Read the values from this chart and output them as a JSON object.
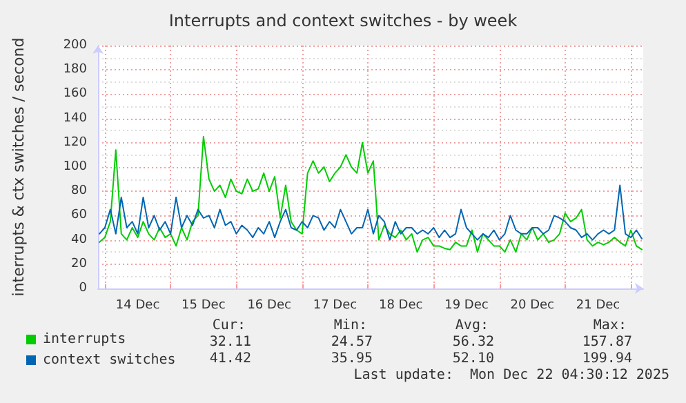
{
  "chart_data": {
    "type": "line",
    "title": "Interrupts and context switches - by week",
    "ylabel": "interrupts & ctx switches / second",
    "x": [
      "2025-12-13T22:00",
      "2025-12-14T00:00",
      "2025-12-14T02:00",
      "2025-12-14T04:00",
      "2025-12-14T06:00",
      "2025-12-14T08:00",
      "2025-12-14T10:00",
      "2025-12-14T12:00",
      "2025-12-14T14:00",
      "2025-12-14T16:00",
      "2025-12-14T18:00",
      "2025-12-14T20:00",
      "2025-12-14T22:00",
      "2025-12-15T00:00",
      "2025-12-15T02:00",
      "2025-12-15T04:00",
      "2025-12-15T06:00",
      "2025-12-15T08:00",
      "2025-12-15T10:00",
      "2025-12-15T12:00",
      "2025-12-15T14:00",
      "2025-12-15T16:00",
      "2025-12-15T18:00",
      "2025-12-15T20:00",
      "2025-12-15T22:00",
      "2025-12-16T00:00",
      "2025-12-16T02:00",
      "2025-12-16T04:00",
      "2025-12-16T06:00",
      "2025-12-16T08:00",
      "2025-12-16T10:00",
      "2025-12-16T12:00",
      "2025-12-16T14:00",
      "2025-12-16T16:00",
      "2025-12-16T18:00",
      "2025-12-16T20:00",
      "2025-12-16T22:00",
      "2025-12-17T00:00",
      "2025-12-17T02:00",
      "2025-12-17T04:00",
      "2025-12-17T06:00",
      "2025-12-17T08:00",
      "2025-12-17T10:00",
      "2025-12-17T12:00",
      "2025-12-17T14:00",
      "2025-12-17T16:00",
      "2025-12-17T18:00",
      "2025-12-17T20:00",
      "2025-12-17T22:00",
      "2025-12-18T00:00",
      "2025-12-18T02:00",
      "2025-12-18T04:00",
      "2025-12-18T06:00",
      "2025-12-18T08:00",
      "2025-12-18T10:00",
      "2025-12-18T12:00",
      "2025-12-18T14:00",
      "2025-12-18T16:00",
      "2025-12-18T18:00",
      "2025-12-18T20:00",
      "2025-12-18T22:00",
      "2025-12-19T00:00",
      "2025-12-19T02:00",
      "2025-12-19T04:00",
      "2025-12-19T06:00",
      "2025-12-19T08:00",
      "2025-12-19T10:00",
      "2025-12-19T12:00",
      "2025-12-19T14:00",
      "2025-12-19T16:00",
      "2025-12-19T18:00",
      "2025-12-19T20:00",
      "2025-12-19T22:00",
      "2025-12-20T00:00",
      "2025-12-20T02:00",
      "2025-12-20T04:00",
      "2025-12-20T06:00",
      "2025-12-20T08:00",
      "2025-12-20T10:00",
      "2025-12-20T12:00",
      "2025-12-20T14:00",
      "2025-12-20T16:00",
      "2025-12-20T18:00",
      "2025-12-20T20:00",
      "2025-12-20T22:00",
      "2025-12-21T00:00",
      "2025-12-21T02:00",
      "2025-12-21T04:00",
      "2025-12-21T06:00",
      "2025-12-21T08:00",
      "2025-12-21T10:00",
      "2025-12-21T12:00",
      "2025-12-21T14:00",
      "2025-12-21T16:00",
      "2025-12-21T18:00",
      "2025-12-21T20:00",
      "2025-12-21T22:00",
      "2025-12-22T00:00",
      "2025-12-22T02:00",
      "2025-12-22T04:00"
    ],
    "series": [
      {
        "name": "interrupts",
        "color": "#00cc00",
        "values": [
          38,
          42,
          55,
          114,
          45,
          40,
          50,
          42,
          55,
          45,
          40,
          50,
          42,
          45,
          35,
          50,
          40,
          55,
          60,
          125,
          90,
          80,
          85,
          75,
          90,
          80,
          78,
          90,
          80,
          82,
          95,
          80,
          92,
          58,
          85,
          55,
          48,
          45,
          95,
          105,
          95,
          100,
          88,
          95,
          100,
          110,
          100,
          95,
          120,
          95,
          105,
          40,
          52,
          45,
          42,
          48,
          40,
          45,
          30,
          40,
          42,
          35,
          35,
          33,
          32,
          38,
          35,
          35,
          48,
          30,
          45,
          40,
          35,
          35,
          30,
          40,
          30,
          45,
          40,
          50,
          40,
          45,
          38,
          40,
          45,
          62,
          55,
          58,
          65,
          40,
          35,
          38,
          36,
          38,
          42,
          38,
          35,
          48,
          35,
          32
        ]
      },
      {
        "name": "context switches",
        "color": "#0066b3",
        "values": [
          45,
          50,
          65,
          45,
          75,
          50,
          55,
          45,
          75,
          50,
          60,
          48,
          55,
          45,
          75,
          50,
          60,
          52,
          65,
          58,
          60,
          50,
          65,
          52,
          55,
          45,
          52,
          48,
          42,
          50,
          45,
          55,
          42,
          55,
          65,
          50,
          48,
          55,
          50,
          60,
          58,
          48,
          55,
          50,
          65,
          55,
          45,
          50,
          50,
          65,
          45,
          60,
          55,
          40,
          55,
          45,
          50,
          50,
          45,
          48,
          45,
          50,
          42,
          48,
          42,
          45,
          65,
          50,
          45,
          40,
          45,
          42,
          48,
          40,
          45,
          60,
          48,
          45,
          45,
          50,
          50,
          45,
          48,
          60,
          58,
          55,
          50,
          48,
          42,
          45,
          40,
          45,
          48,
          45,
          48,
          85,
          45,
          42,
          48,
          41
        ]
      }
    ],
    "xlim": [
      "2025-12-13T21:30",
      "2025-12-22T04:30"
    ],
    "xticks": [
      {
        "value": "2025-12-14T00:00",
        "label": null
      },
      {
        "value": "2025-12-14T12:00",
        "label": "14 Dec"
      },
      {
        "value": "2025-12-15T00:00",
        "label": null
      },
      {
        "value": "2025-12-15T12:00",
        "label": "15 Dec"
      },
      {
        "value": "2025-12-16T00:00",
        "label": null
      },
      {
        "value": "2025-12-16T12:00",
        "label": "16 Dec"
      },
      {
        "value": "2025-12-17T00:00",
        "label": null
      },
      {
        "value": "2025-12-17T12:00",
        "label": "17 Dec"
      },
      {
        "value": "2025-12-18T00:00",
        "label": null
      },
      {
        "value": "2025-12-18T12:00",
        "label": "18 Dec"
      },
      {
        "value": "2025-12-19T00:00",
        "label": null
      },
      {
        "value": "2025-12-19T12:00",
        "label": "19 Dec"
      },
      {
        "value": "2025-12-20T00:00",
        "label": null
      },
      {
        "value": "2025-12-20T12:00",
        "label": "20 Dec"
      },
      {
        "value": "2025-12-21T00:00",
        "label": null
      },
      {
        "value": "2025-12-21T12:00",
        "label": "21 Dec"
      },
      {
        "value": "2025-12-22T00:00",
        "label": null
      }
    ],
    "ylim": [
      0,
      200
    ],
    "yticks": [
      0,
      20,
      40,
      60,
      80,
      100,
      120,
      140,
      160,
      180,
      200
    ],
    "grid": true,
    "legend": "bottom left",
    "marker": "none",
    "line_style": "solid",
    "annotations": [
      "Cur:",
      "Min:",
      "Avg:",
      "Max:",
      "32.11",
      "24.57",
      "56.32",
      "157.87",
      "41.42",
      "35.95",
      "52.10",
      "199.94",
      "Last update:  Mon Dec 22 04:30:12 2025"
    ]
  }
}
